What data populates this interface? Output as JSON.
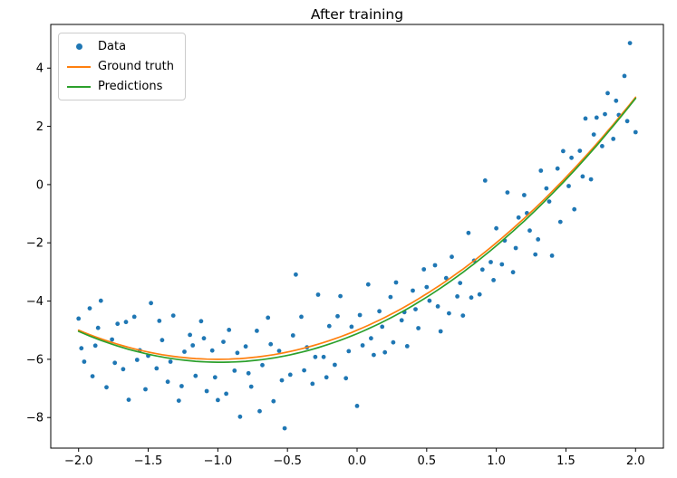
{
  "chart_data": {
    "type": "scatter",
    "title": "After training",
    "axes": {
      "xlim": [
        -2.2,
        2.2
      ],
      "ylim": [
        -9.05,
        5.5
      ],
      "xticks": [
        -2.0,
        -1.5,
        -1.0,
        -0.5,
        0.0,
        0.5,
        1.0,
        1.5,
        2.0
      ],
      "yticks": [
        -8,
        -6,
        -4,
        -2,
        0,
        2,
        4
      ],
      "grid": false,
      "xlabel": "",
      "ylabel": ""
    },
    "series": [
      {
        "name": "Data",
        "type": "scatter",
        "color": "#1f77b4",
        "points": [
          [
            -2.0,
            -4.6
          ],
          [
            -1.96,
            -6.08
          ],
          [
            -1.92,
            -4.25
          ],
          [
            -1.88,
            -5.53
          ],
          [
            -1.84,
            -3.99
          ],
          [
            -1.8,
            -6.96
          ],
          [
            -1.76,
            -5.32
          ],
          [
            -1.72,
            -4.78
          ],
          [
            -1.68,
            -6.34
          ],
          [
            -1.64,
            -7.39
          ],
          [
            -1.6,
            -4.54
          ],
          [
            -1.56,
            -5.69
          ],
          [
            -1.52,
            -7.03
          ],
          [
            -1.48,
            -4.07
          ],
          [
            -1.44,
            -6.31
          ],
          [
            -1.4,
            -5.34
          ],
          [
            -1.36,
            -6.77
          ],
          [
            -1.32,
            -4.5
          ],
          [
            -1.28,
            -7.42
          ],
          [
            -1.24,
            -5.74
          ],
          [
            -1.2,
            -5.16
          ],
          [
            -1.16,
            -6.57
          ],
          [
            -1.12,
            -4.69
          ],
          [
            -1.08,
            -7.09
          ],
          [
            -1.04,
            -5.7
          ],
          [
            -1.0,
            -7.4
          ],
          [
            -0.96,
            -5.4
          ],
          [
            -0.92,
            -4.99
          ],
          [
            -0.88,
            -6.39
          ],
          [
            -0.84,
            -7.97
          ],
          [
            -0.8,
            -5.56
          ],
          [
            -0.76,
            -6.94
          ],
          [
            -0.72,
            -5.02
          ],
          [
            -0.68,
            -6.2
          ],
          [
            -0.64,
            -4.57
          ],
          [
            -0.6,
            -7.44
          ],
          [
            -0.56,
            -5.71
          ],
          [
            -0.52,
            -8.37
          ],
          [
            -0.48,
            -6.53
          ],
          [
            -0.44,
            -3.09
          ],
          [
            -0.4,
            -4.54
          ],
          [
            -0.36,
            -5.59
          ],
          [
            -0.32,
            -6.84
          ],
          [
            -0.28,
            -3.78
          ],
          [
            -0.24,
            -5.92
          ],
          [
            -0.2,
            -4.86
          ],
          [
            -0.16,
            -6.19
          ],
          [
            -0.12,
            -3.83
          ],
          [
            -0.08,
            -6.65
          ],
          [
            -0.04,
            -4.88
          ],
          [
            0.0,
            -7.6
          ],
          [
            0.04,
            -5.52
          ],
          [
            0.08,
            -3.43
          ],
          [
            0.12,
            -5.85
          ],
          [
            0.16,
            -4.35
          ],
          [
            0.2,
            -5.76
          ],
          [
            0.24,
            -3.86
          ],
          [
            0.28,
            -3.36
          ],
          [
            0.32,
            -4.66
          ],
          [
            0.36,
            -5.55
          ],
          [
            0.4,
            -3.64
          ],
          [
            0.44,
            -4.93
          ],
          [
            0.48,
            -2.91
          ],
          [
            0.52,
            -3.99
          ],
          [
            0.56,
            -2.77
          ],
          [
            0.6,
            -5.04
          ],
          [
            0.64,
            -3.21
          ],
          [
            0.68,
            -2.48
          ],
          [
            0.72,
            -3.84
          ],
          [
            0.76,
            -4.5
          ],
          [
            0.8,
            -1.66
          ],
          [
            0.84,
            -2.61
          ],
          [
            0.88,
            -3.77
          ],
          [
            0.92,
            0.14
          ],
          [
            0.96,
            -2.66
          ],
          [
            1.0,
            -1.5
          ],
          [
            1.04,
            -2.74
          ],
          [
            1.08,
            -0.27
          ],
          [
            1.12,
            -3.01
          ],
          [
            1.16,
            -1.13
          ],
          [
            1.2,
            -0.36
          ],
          [
            1.24,
            -1.58
          ],
          [
            1.28,
            -2.4
          ],
          [
            1.32,
            0.48
          ],
          [
            1.36,
            -0.13
          ],
          [
            1.4,
            -2.44
          ],
          [
            1.44,
            0.55
          ],
          [
            1.48,
            1.15
          ],
          [
            1.52,
            -0.05
          ],
          [
            1.56,
            -0.85
          ],
          [
            1.6,
            1.16
          ],
          [
            1.64,
            2.27
          ],
          [
            1.68,
            0.18
          ],
          [
            1.72,
            2.3
          ],
          [
            1.76,
            1.32
          ],
          [
            1.8,
            3.14
          ],
          [
            1.84,
            1.57
          ],
          [
            1.88,
            2.39
          ],
          [
            1.92,
            3.73
          ],
          [
            1.96,
            4.86
          ],
          [
            2.0,
            1.8
          ],
          [
            -1.98,
            -5.62
          ],
          [
            -1.9,
            -6.58
          ],
          [
            -1.86,
            -4.92
          ],
          [
            -1.74,
            -6.12
          ],
          [
            -1.66,
            -4.72
          ],
          [
            -1.58,
            -6.02
          ],
          [
            -1.5,
            -5.88
          ],
          [
            -1.42,
            -4.68
          ],
          [
            -1.34,
            -6.08
          ],
          [
            -1.26,
            -6.92
          ],
          [
            -1.18,
            -5.52
          ],
          [
            -1.1,
            -5.28
          ],
          [
            -1.02,
            -6.62
          ],
          [
            -0.94,
            -7.18
          ],
          [
            -0.86,
            -5.78
          ],
          [
            -0.78,
            -6.48
          ],
          [
            -0.7,
            -7.78
          ],
          [
            -0.62,
            -5.48
          ],
          [
            -0.54,
            -6.72
          ],
          [
            -0.46,
            -5.18
          ],
          [
            -0.38,
            -6.38
          ],
          [
            -0.3,
            -5.92
          ],
          [
            -0.22,
            -6.62
          ],
          [
            -0.14,
            -4.52
          ],
          [
            -0.06,
            -5.72
          ],
          [
            0.02,
            -4.48
          ],
          [
            0.1,
            -5.28
          ],
          [
            0.18,
            -4.88
          ],
          [
            0.26,
            -5.42
          ],
          [
            0.34,
            -4.38
          ],
          [
            0.42,
            -4.28
          ],
          [
            0.5,
            -3.52
          ],
          [
            0.58,
            -4.18
          ],
          [
            0.66,
            -4.42
          ],
          [
            0.74,
            -3.38
          ],
          [
            0.82,
            -3.88
          ],
          [
            0.9,
            -2.92
          ],
          [
            0.98,
            -3.28
          ],
          [
            1.06,
            -1.92
          ],
          [
            1.14,
            -2.18
          ],
          [
            1.22,
            -0.98
          ],
          [
            1.3,
            -1.88
          ],
          [
            1.38,
            -0.58
          ],
          [
            1.46,
            -1.28
          ],
          [
            1.54,
            0.92
          ],
          [
            1.62,
            0.28
          ],
          [
            1.7,
            1.72
          ],
          [
            1.78,
            2.42
          ],
          [
            1.86,
            2.88
          ],
          [
            1.94,
            2.18
          ]
        ]
      },
      {
        "name": "Ground truth",
        "type": "line",
        "color": "#ff7f0e",
        "equation": "y = x^2 + 2x - 5",
        "coeffs": [
          1.0,
          2.0,
          -5.0
        ],
        "x_range": [
          -2.0,
          2.0
        ]
      },
      {
        "name": "Predictions",
        "type": "line",
        "color": "#2ca02c",
        "equation": "y ≈ 1.02x^2 + 2.0x - 5.12",
        "coeffs": [
          1.02,
          2.0,
          -5.12
        ],
        "x_range": [
          -2.0,
          2.0
        ]
      }
    ],
    "legend": {
      "position": "upper left",
      "items": [
        {
          "label": "Data",
          "swatch": "marker",
          "color": "#1f77b4"
        },
        {
          "label": "Ground truth",
          "swatch": "line",
          "color": "#ff7f0e"
        },
        {
          "label": "Predictions",
          "swatch": "line",
          "color": "#2ca02c"
        }
      ]
    }
  }
}
